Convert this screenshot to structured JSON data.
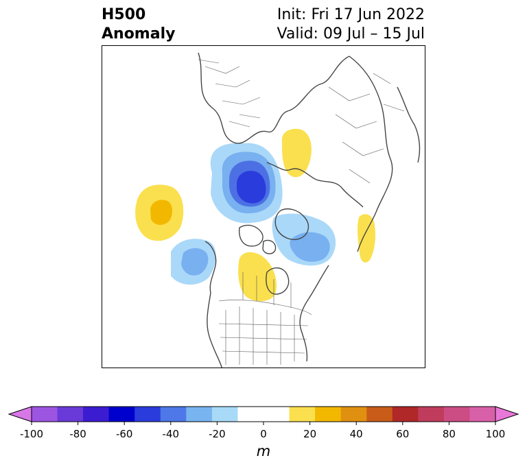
{
  "title": {
    "line1_left": "H500",
    "line2_left": "Anomaly",
    "line1_right": "Init: Fri 17 Jun 2022",
    "line2_right": "Valid: 09 Jul – 15 Jul"
  },
  "colorbar": {
    "unit": "m",
    "ticks": [
      "-100",
      "-80",
      "-60",
      "-40",
      "-20",
      "0",
      "20",
      "40",
      "60",
      "80",
      "100"
    ],
    "under_color": "#d878e8",
    "over_color": "#e878d8",
    "colors": [
      "#9c55e0",
      "#6a3ad8",
      "#3c1cd0",
      "#0000cc",
      "#2a3cdc",
      "#4e78e8",
      "#78b4f0",
      "#a8daf8",
      "#ffffff",
      "#ffffff",
      "#fae04e",
      "#f2b800",
      "#e09010",
      "#c85c18",
      "#b02828",
      "#c03c5c",
      "#cc4c84",
      "#d860a8"
    ]
  },
  "map": {
    "colors": {
      "light_blue": "#aad8f8",
      "mid_blue": "#78b0f0",
      "blue": "#4c70e4",
      "dark_blue": "#2a3cdc",
      "yellow": "#fae04e",
      "gold": "#f2b800",
      "coast": "#444444"
    }
  }
}
